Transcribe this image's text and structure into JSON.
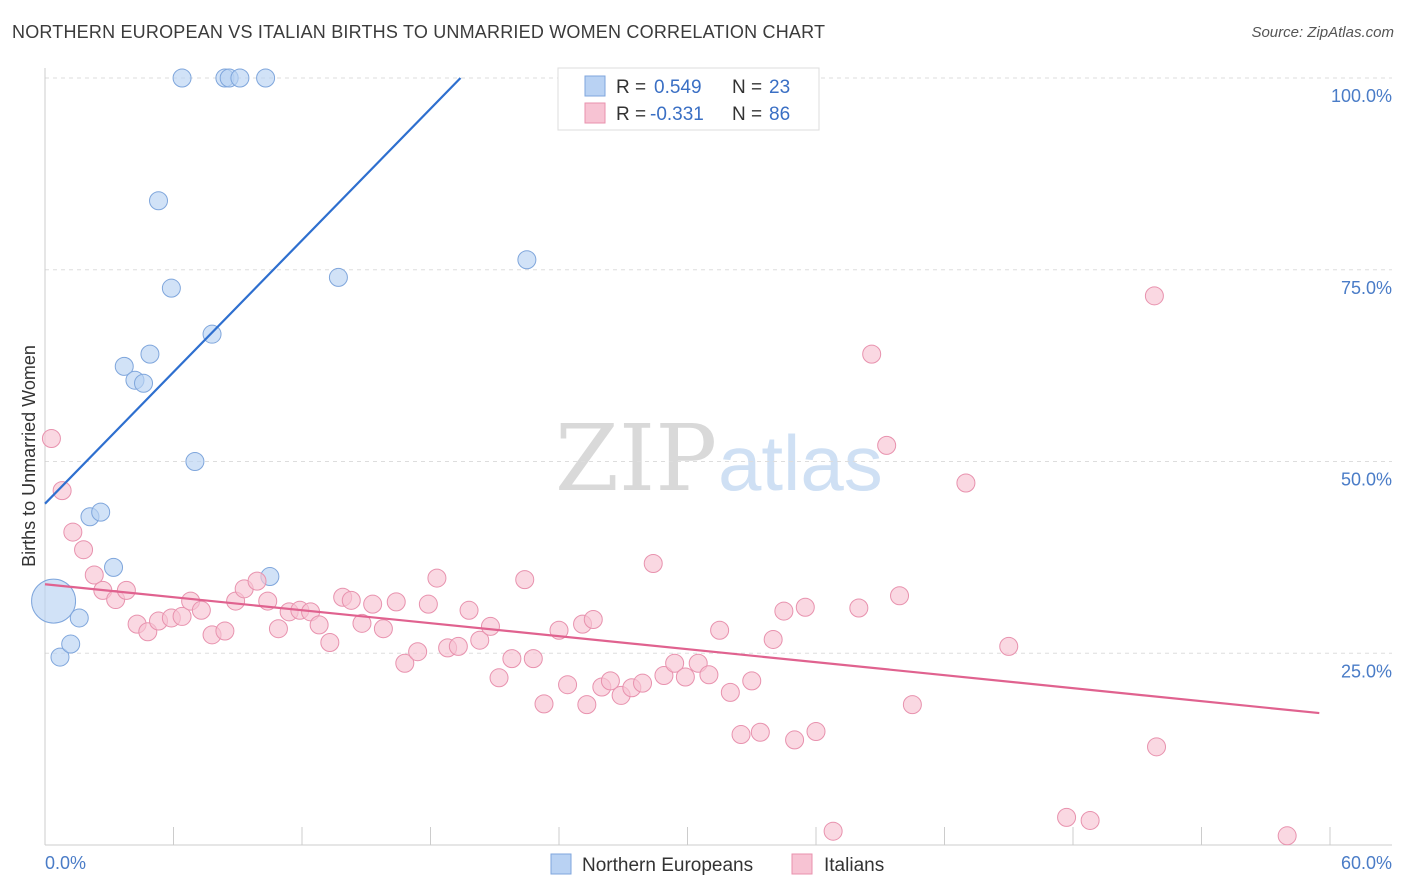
{
  "title": "NORTHERN EUROPEAN VS ITALIAN BIRTHS TO UNMARRIED WOMEN CORRELATION CHART",
  "source": "Source: ZipAtlas.com",
  "watermark": {
    "zip": "ZIP",
    "atlas": "atlas"
  },
  "colors": {
    "blue_fill": "#b9d2f3",
    "blue_stroke": "#7fa6dc",
    "blue_line": "#2e6fcf",
    "pink_fill": "#f7c3d3",
    "pink_stroke": "#e892ae",
    "pink_line": "#e0628f",
    "grid": "#dddddd",
    "tick_text": "#4a7cc7"
  },
  "legend_top": [
    {
      "r_label": "R = ",
      "r_value": "0.549",
      "n_label": "N = ",
      "n_value": "23",
      "series": "blue"
    },
    {
      "r_label": "R = ",
      "r_value": "-0.331",
      "n_label": "N = ",
      "n_value": "86",
      "series": "pink"
    }
  ],
  "legend_bottom": [
    {
      "label": "Northern Europeans",
      "series": "blue"
    },
    {
      "label": "Italians",
      "series": "pink"
    }
  ],
  "chart_data": {
    "type": "scatter",
    "title": "NORTHERN EUROPEAN VS ITALIAN BIRTHS TO UNMARRIED WOMEN CORRELATION CHART",
    "xlabel": "",
    "ylabel": "Births to Unmarried Women",
    "xlim": [
      0,
      60
    ],
    "ylim": [
      0,
      100
    ],
    "x_tick_labels": [
      "0.0%",
      "60.0%"
    ],
    "y_ticks": [
      25,
      50,
      75,
      100
    ],
    "y_tick_labels": [
      "25.0%",
      "50.0%",
      "75.0%",
      "100.0%"
    ],
    "grid": true,
    "series": [
      {
        "name": "Northern Europeans",
        "color": "blue",
        "trend": {
          "x": [
            0,
            19.4
          ],
          "y": [
            44.5,
            100
          ]
        },
        "points": [
          [
            0.4,
            31.8,
            22
          ],
          [
            0.7,
            24.5,
            9
          ],
          [
            1.2,
            26.2,
            9
          ],
          [
            1.6,
            29.6,
            9
          ],
          [
            2.1,
            42.8,
            9
          ],
          [
            2.6,
            43.4,
            9
          ],
          [
            3.2,
            36.2,
            9
          ],
          [
            3.7,
            62.4,
            9
          ],
          [
            4.2,
            60.6,
            9
          ],
          [
            4.6,
            60.2,
            9
          ],
          [
            4.9,
            64.0,
            9
          ],
          [
            5.3,
            84.0,
            9
          ],
          [
            5.9,
            72.6,
            9
          ],
          [
            6.4,
            100,
            9
          ],
          [
            7.0,
            50.0,
            9
          ],
          [
            7.8,
            66.6,
            9
          ],
          [
            8.4,
            100,
            9
          ],
          [
            8.6,
            100,
            9
          ],
          [
            9.1,
            100,
            9
          ],
          [
            10.3,
            100,
            9
          ],
          [
            10.5,
            35.0,
            9
          ],
          [
            13.7,
            74.0,
            9
          ],
          [
            22.5,
            76.3,
            9
          ]
        ]
      },
      {
        "name": "Italians",
        "color": "pink",
        "trend": {
          "x": [
            0,
            59.5
          ],
          "y": [
            34.0,
            17.2
          ]
        },
        "points": [
          [
            0.3,
            53.0
          ],
          [
            0.8,
            46.2
          ],
          [
            1.3,
            40.8
          ],
          [
            1.8,
            38.5
          ],
          [
            2.3,
            35.2
          ],
          [
            2.7,
            33.2
          ],
          [
            3.3,
            32.0
          ],
          [
            3.8,
            33.2
          ],
          [
            4.3,
            28.8
          ],
          [
            4.8,
            27.8
          ],
          [
            5.3,
            29.2
          ],
          [
            5.9,
            29.6
          ],
          [
            6.4,
            29.8
          ],
          [
            6.8,
            31.8
          ],
          [
            7.3,
            30.6
          ],
          [
            7.8,
            27.4
          ],
          [
            8.4,
            27.9
          ],
          [
            8.9,
            31.8
          ],
          [
            9.3,
            33.4
          ],
          [
            9.9,
            34.4
          ],
          [
            10.4,
            31.8
          ],
          [
            10.9,
            28.2
          ],
          [
            11.4,
            30.4
          ],
          [
            11.9,
            30.6
          ],
          [
            12.4,
            30.4
          ],
          [
            12.8,
            28.7
          ],
          [
            13.3,
            26.4
          ],
          [
            13.9,
            32.3
          ],
          [
            14.3,
            31.9
          ],
          [
            14.8,
            28.9
          ],
          [
            15.3,
            31.4
          ],
          [
            15.8,
            28.2
          ],
          [
            16.4,
            31.7
          ],
          [
            16.8,
            23.7
          ],
          [
            17.4,
            25.2
          ],
          [
            17.9,
            31.4
          ],
          [
            18.3,
            34.8
          ],
          [
            18.8,
            25.7
          ],
          [
            19.3,
            25.9
          ],
          [
            19.8,
            30.6
          ],
          [
            20.3,
            26.7
          ],
          [
            20.8,
            28.5
          ],
          [
            21.2,
            21.8
          ],
          [
            21.8,
            24.3
          ],
          [
            22.4,
            34.6
          ],
          [
            22.8,
            24.3
          ],
          [
            23.3,
            18.4
          ],
          [
            24.0,
            28.0
          ],
          [
            24.4,
            20.9
          ],
          [
            25.3,
            18.3
          ],
          [
            25.1,
            28.8
          ],
          [
            25.6,
            29.4
          ],
          [
            26.0,
            20.6
          ],
          [
            26.4,
            21.4
          ],
          [
            26.9,
            19.5
          ],
          [
            27.4,
            20.5
          ],
          [
            27.9,
            21.1
          ],
          [
            28.4,
            36.7
          ],
          [
            28.9,
            22.1
          ],
          [
            29.4,
            23.7
          ],
          [
            29.9,
            21.9
          ],
          [
            30.5,
            23.7
          ],
          [
            31.0,
            22.2
          ],
          [
            31.5,
            28.0
          ],
          [
            32.0,
            19.9
          ],
          [
            32.5,
            14.4
          ],
          [
            33.0,
            21.4
          ],
          [
            33.4,
            14.7
          ],
          [
            34.0,
            26.8
          ],
          [
            34.5,
            30.5
          ],
          [
            35.0,
            13.7
          ],
          [
            35.5,
            31.0
          ],
          [
            36.0,
            14.8
          ],
          [
            36.8,
            1.8
          ],
          [
            38.0,
            30.9
          ],
          [
            38.6,
            64.0
          ],
          [
            39.3,
            52.1
          ],
          [
            39.9,
            32.5
          ],
          [
            40.5,
            18.3
          ],
          [
            43.0,
            47.2
          ],
          [
            45.0,
            25.9
          ],
          [
            47.7,
            3.6
          ],
          [
            48.8,
            3.2
          ],
          [
            51.8,
            71.6
          ],
          [
            51.9,
            12.8
          ],
          [
            58.0,
            1.2
          ]
        ]
      }
    ]
  }
}
